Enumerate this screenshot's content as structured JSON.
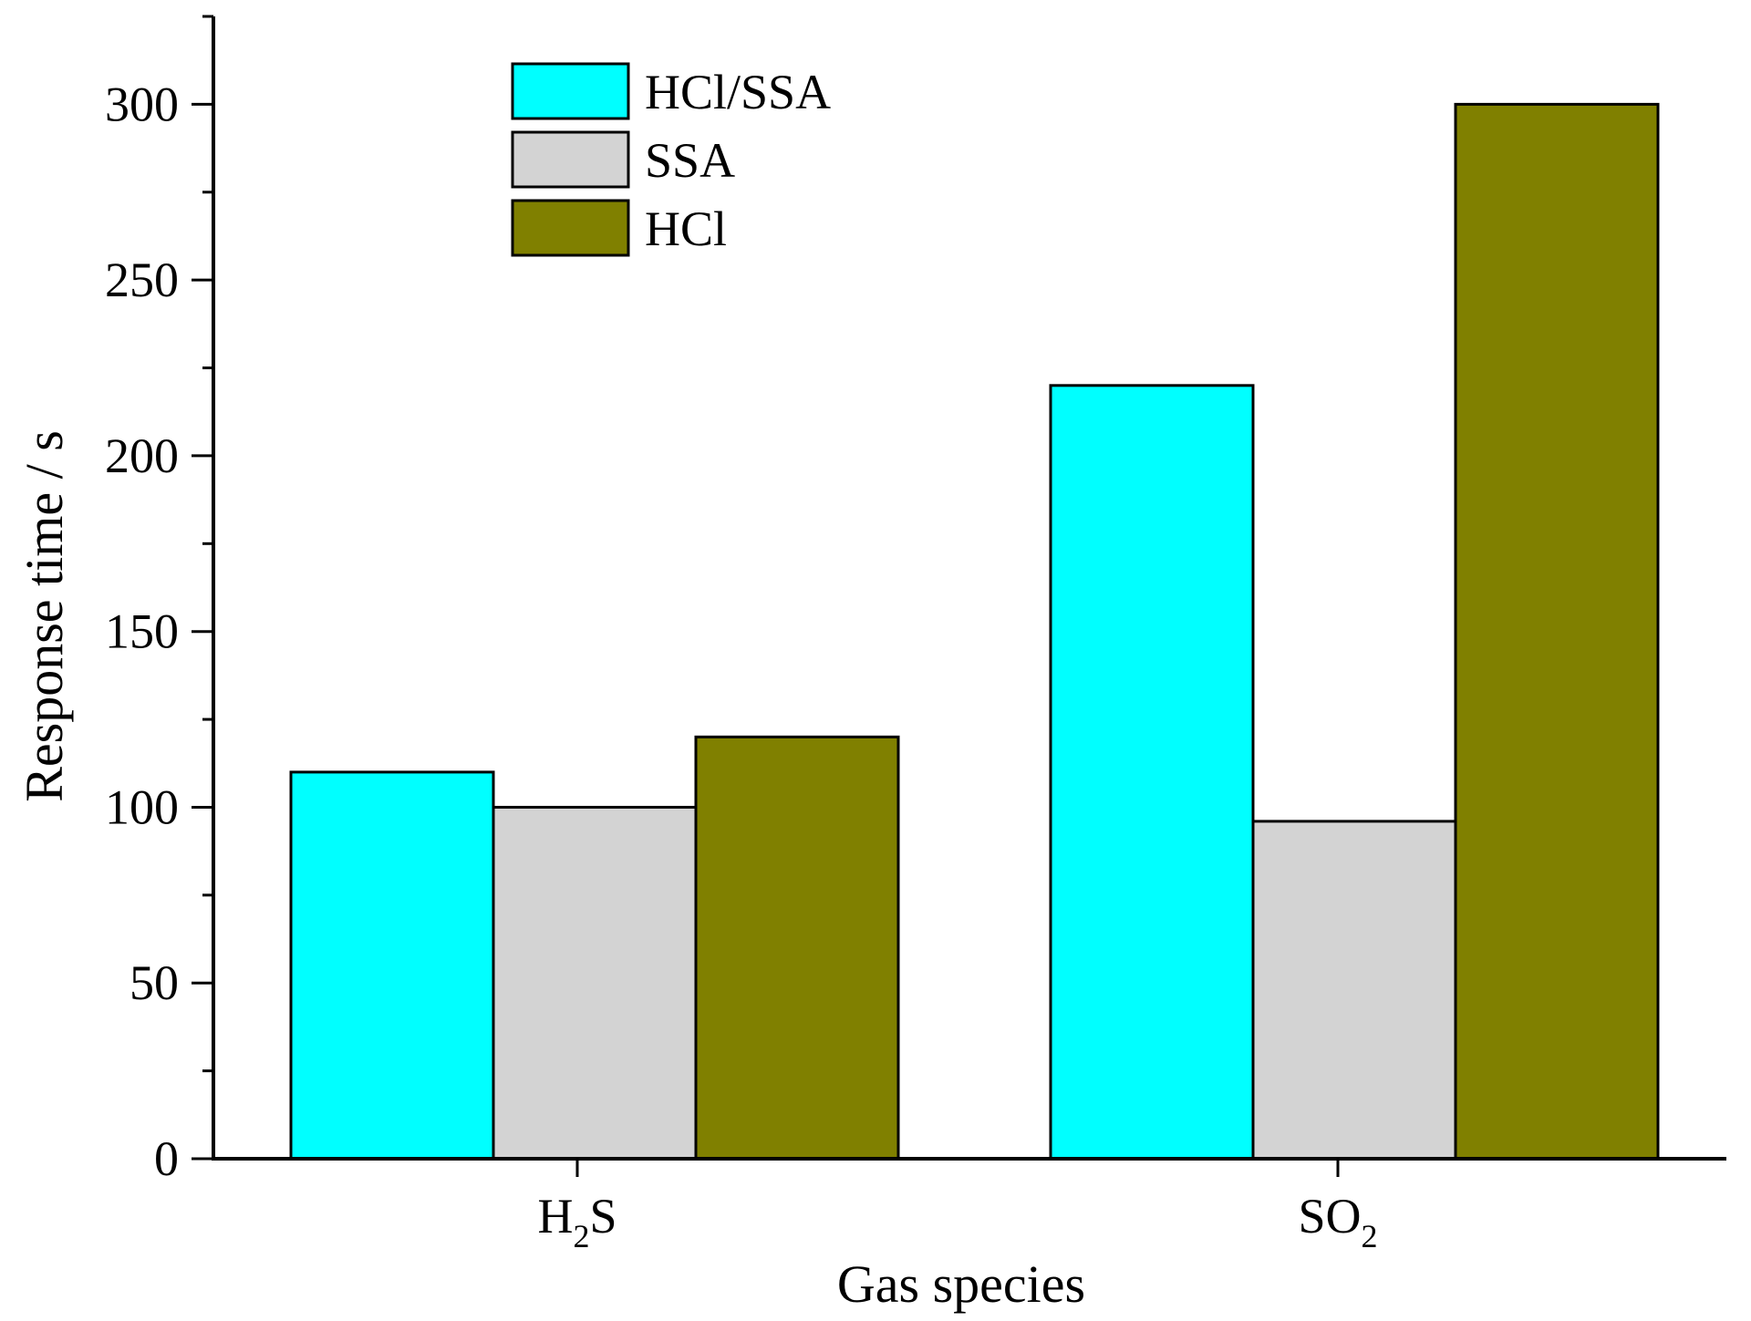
{
  "chart_data": {
    "type": "bar",
    "title": "",
    "xlabel": "Gas species",
    "ylabel": "Response time / s",
    "categories": [
      {
        "main": "H",
        "sub": "2",
        "tail": "S"
      },
      {
        "main": "SO",
        "sub": "2",
        "tail": ""
      }
    ],
    "category_names": [
      "H2S",
      "SO2"
    ],
    "series": [
      {
        "name": "HCl/SSA",
        "color": "#00FFFF",
        "values": [
          110,
          220
        ]
      },
      {
        "name": "SSA",
        "color": "#D3D3D3",
        "values": [
          100,
          96
        ]
      },
      {
        "name": "HCl",
        "color": "#808000",
        "values": [
          120,
          300
        ]
      }
    ],
    "ylim": [
      0,
      325
    ],
    "yticks": [
      0,
      50,
      100,
      150,
      200,
      250,
      300
    ],
    "yminor_step": 25,
    "grid": false,
    "legend_position": "top-left"
  }
}
